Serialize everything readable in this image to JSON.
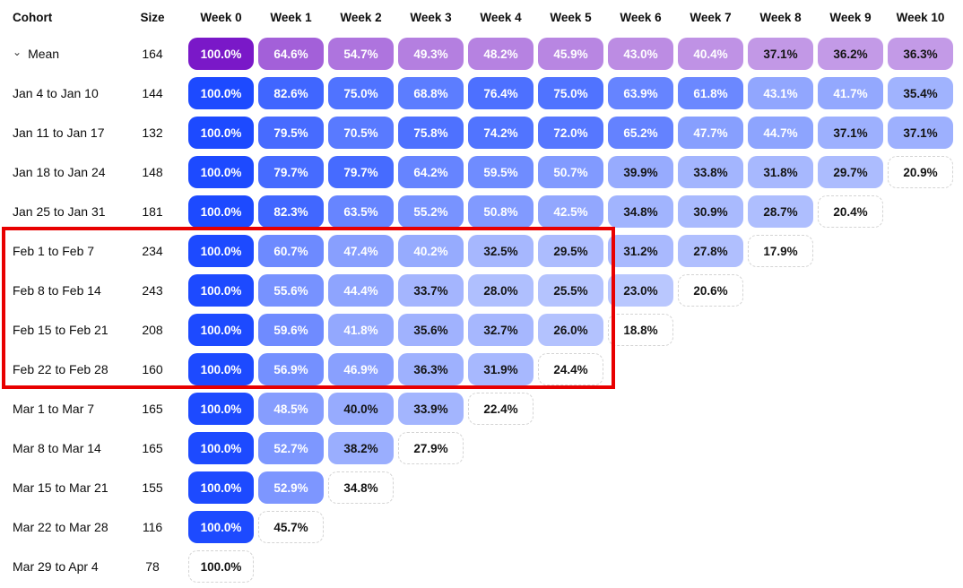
{
  "ui": {
    "colors": {
      "background": "#ffffff",
      "text": "#0d0d0d",
      "blue_dark": "#1d4aff",
      "blue_light": "#e8ecfe",
      "purple_dark": "#7a18c8",
      "purple_light": "#ede4f8",
      "cell_text_light": "#ffffff",
      "cell_text_dark": "#141414",
      "dashed_border": "#d4d4d4",
      "highlight_red": "#e80000"
    },
    "icons": {
      "mean_expand_chevron": "⌄"
    },
    "highlight_box": {
      "note": "red annotation rectangle around Feb 1 - Feb 28 cohort rows, Week 0 through Week 5"
    }
  },
  "chart_data": {
    "type": "heatmap",
    "value_unit": "%",
    "col_headers": {
      "cohort": "Cohort",
      "size": "Size"
    },
    "x_labels": [
      "Week 0",
      "Week 1",
      "Week 2",
      "Week 3",
      "Week 4",
      "Week 5",
      "Week 6",
      "Week 7",
      "Week 8",
      "Week 9",
      "Week 10"
    ],
    "rows": [
      {
        "cohort": "Mean",
        "size": "164",
        "palette": "purple",
        "expandable": true,
        "last_incomplete": false,
        "values": [
          100.0,
          64.6,
          54.7,
          49.3,
          48.2,
          45.9,
          43.0,
          40.4,
          37.1,
          36.2,
          36.3
        ]
      },
      {
        "cohort": "Jan 4 to Jan 10",
        "size": "144",
        "palette": "blue",
        "expandable": false,
        "last_incomplete": false,
        "values": [
          100.0,
          82.6,
          75.0,
          68.8,
          76.4,
          75.0,
          63.9,
          61.8,
          43.1,
          41.7,
          35.4
        ]
      },
      {
        "cohort": "Jan 11 to Jan 17",
        "size": "132",
        "palette": "blue",
        "expandable": false,
        "last_incomplete": false,
        "values": [
          100.0,
          79.5,
          70.5,
          75.8,
          74.2,
          72.0,
          65.2,
          47.7,
          44.7,
          37.1,
          37.1
        ]
      },
      {
        "cohort": "Jan 18 to Jan 24",
        "size": "148",
        "palette": "blue",
        "expandable": false,
        "last_incomplete": true,
        "values": [
          100.0,
          79.7,
          79.7,
          64.2,
          59.5,
          50.7,
          39.9,
          33.8,
          31.8,
          29.7,
          20.9
        ]
      },
      {
        "cohort": "Jan 25 to Jan 31",
        "size": "181",
        "palette": "blue",
        "expandable": false,
        "last_incomplete": true,
        "values": [
          100.0,
          82.3,
          63.5,
          55.2,
          50.8,
          42.5,
          34.8,
          30.9,
          28.7,
          20.4
        ]
      },
      {
        "cohort": "Feb 1 to Feb 7",
        "size": "234",
        "palette": "blue",
        "expandable": false,
        "last_incomplete": true,
        "values": [
          100.0,
          60.7,
          47.4,
          40.2,
          32.5,
          29.5,
          31.2,
          27.8,
          17.9
        ]
      },
      {
        "cohort": "Feb 8 to Feb 14",
        "size": "243",
        "palette": "blue",
        "expandable": false,
        "last_incomplete": true,
        "values": [
          100.0,
          55.6,
          44.4,
          33.7,
          28.0,
          25.5,
          23.0,
          20.6
        ]
      },
      {
        "cohort": "Feb 15 to Feb 21",
        "size": "208",
        "palette": "blue",
        "expandable": false,
        "last_incomplete": true,
        "values": [
          100.0,
          59.6,
          41.8,
          35.6,
          32.7,
          26.0,
          18.8
        ]
      },
      {
        "cohort": "Feb 22 to Feb 28",
        "size": "160",
        "palette": "blue",
        "expandable": false,
        "last_incomplete": true,
        "values": [
          100.0,
          56.9,
          46.9,
          36.3,
          31.9,
          24.4
        ]
      },
      {
        "cohort": "Mar 1 to Mar 7",
        "size": "165",
        "palette": "blue",
        "expandable": false,
        "last_incomplete": true,
        "values": [
          100.0,
          48.5,
          40.0,
          33.9,
          22.4
        ]
      },
      {
        "cohort": "Mar 8 to Mar 14",
        "size": "165",
        "palette": "blue",
        "expandable": false,
        "last_incomplete": true,
        "values": [
          100.0,
          52.7,
          38.2,
          27.9
        ]
      },
      {
        "cohort": "Mar 15 to Mar 21",
        "size": "155",
        "palette": "blue",
        "expandable": false,
        "last_incomplete": true,
        "values": [
          100.0,
          52.9,
          34.8
        ]
      },
      {
        "cohort": "Mar 22 to Mar 28",
        "size": "116",
        "palette": "blue",
        "expandable": false,
        "last_incomplete": true,
        "values": [
          100.0,
          45.7
        ]
      },
      {
        "cohort": "Mar 29 to Apr 4",
        "size": "78",
        "palette": "blue",
        "expandable": false,
        "last_incomplete": true,
        "values": [
          100.0
        ]
      }
    ]
  }
}
